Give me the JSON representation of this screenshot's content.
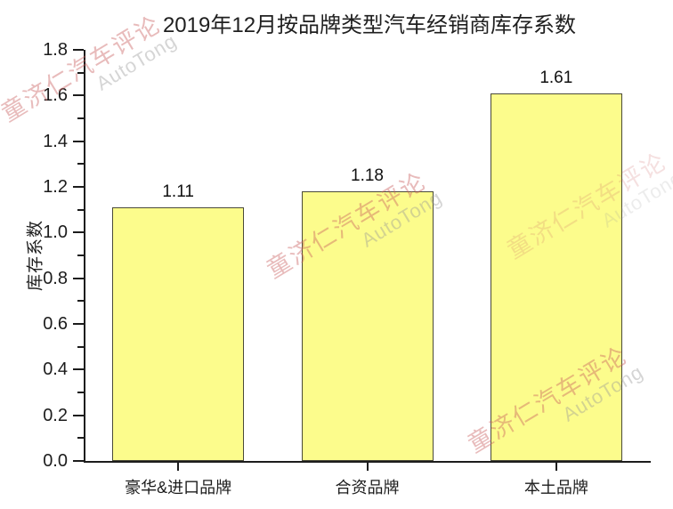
{
  "chart_data": {
    "type": "bar",
    "title": "2019年12月按品牌类型汽车经销商库存系数",
    "categories": [
      "豪华&进口品牌",
      "合资品牌",
      "本土品牌"
    ],
    "values": [
      1.11,
      1.18,
      1.61
    ],
    "data_labels": [
      "1.11",
      "1.18",
      "1.61"
    ],
    "xlabel": "",
    "ylabel": "库存系数",
    "ylim": [
      0.0,
      1.8
    ],
    "ytick_interval": 0.2,
    "yminor_interval": 0.1,
    "ytick_labels": [
      "0.0",
      "0.2",
      "0.4",
      "0.6",
      "0.8",
      "1.0",
      "1.2",
      "1.4",
      "1.6",
      "1.8"
    ],
    "grid": false,
    "legend": "none",
    "bar_fill": "#FCFC8C",
    "bar_border": "#4A4A38",
    "axis_color": "#1C1C1C"
  },
  "watermark": {
    "cn_text": "童济仁汽车评论",
    "en_text": "AutoTong",
    "cn_color": "rgba(201,93,93,0.42)",
    "en_color": "rgba(150,150,150,0.40)"
  }
}
